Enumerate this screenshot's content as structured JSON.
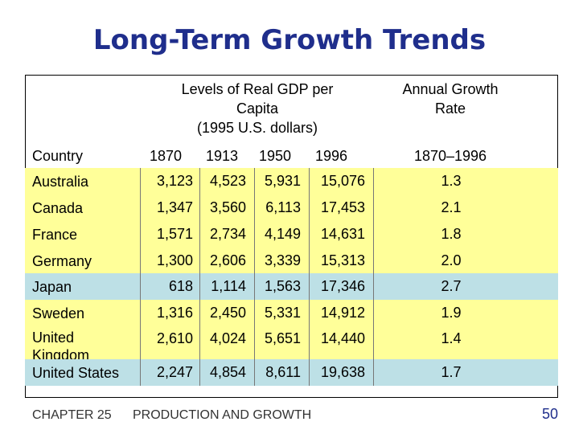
{
  "title": "Long-Term Growth Trends",
  "table": {
    "group_headers": {
      "levels": [
        "Levels of Real GDP per",
        "Capita",
        "(1995 U.S. dollars)"
      ],
      "growth": [
        "Annual Growth",
        "Rate"
      ]
    },
    "column_headers": {
      "country": "Country",
      "years": [
        "1870",
        "1913",
        "1950",
        "1996"
      ],
      "period": "1870–1996"
    },
    "rows": [
      {
        "country": [
          "Australia"
        ],
        "values": [
          "3,123",
          "4,523",
          "5,931",
          "15,076"
        ],
        "growth": "1.3",
        "shade": "yellow"
      },
      {
        "country": [
          "Canada"
        ],
        "values": [
          "1,347",
          "3,560",
          "6,113",
          "17,453"
        ],
        "growth": "2.1",
        "shade": "yellow"
      },
      {
        "country": [
          "France"
        ],
        "values": [
          "1,571",
          "2,734",
          "4,149",
          "14,631"
        ],
        "growth": "1.8",
        "shade": "yellow"
      },
      {
        "country": [
          "Germany"
        ],
        "values": [
          "1,300",
          "2,606",
          "3,339",
          "15,313"
        ],
        "growth": "2.0",
        "shade": "yellow"
      },
      {
        "country": [
          "Japan"
        ],
        "values": [
          "618",
          "1,114",
          "1,563",
          "17,346"
        ],
        "growth": "2.7",
        "shade": "blue"
      },
      {
        "country": [
          "Sweden"
        ],
        "values": [
          "1,316",
          "2,450",
          "5,331",
          "14,912"
        ],
        "growth": "1.9",
        "shade": "yellow"
      },
      {
        "country": [
          "United",
          "Kingdom"
        ],
        "values": [
          "2,610",
          "4,024",
          "5,651",
          "14,440"
        ],
        "growth": "1.4",
        "shade": "yellow"
      },
      {
        "country": [
          "United States"
        ],
        "values": [
          "2,247",
          "4,854",
          "8,611",
          "19,638"
        ],
        "growth": "1.7",
        "shade": "blue"
      }
    ]
  },
  "footer": {
    "chapter": "CHAPTER 25",
    "subject": "PRODUCTION AND GROWTH",
    "page": "50"
  },
  "colors": {
    "title": "#1f2e8c",
    "yellow_row": "#ffff99",
    "blue_row": "#bde0e6"
  }
}
